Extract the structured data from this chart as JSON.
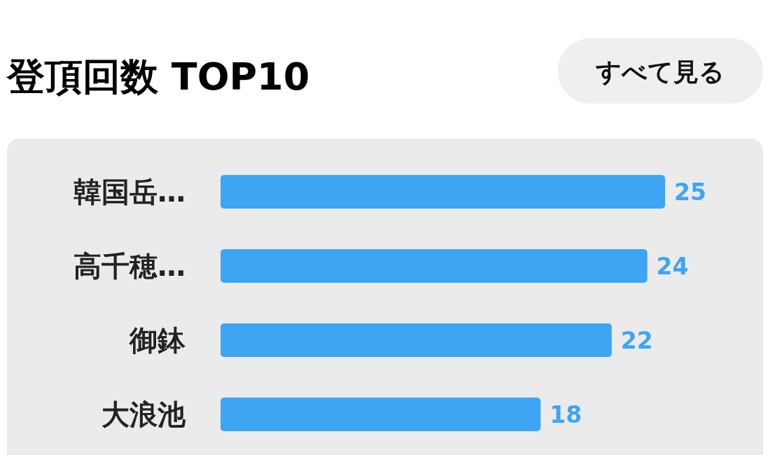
{
  "chart_data": {
    "type": "bar",
    "orientation": "horizontal",
    "title": "登頂回数 TOP10",
    "categories": [
      "韓国岳…",
      "高千穂…",
      "御鉢",
      "大浪池"
    ],
    "values": [
      25,
      24,
      22,
      18
    ],
    "color": "#3ea5f4",
    "data_labels": true,
    "annotations": [
      "すべて見る"
    ]
  }
}
